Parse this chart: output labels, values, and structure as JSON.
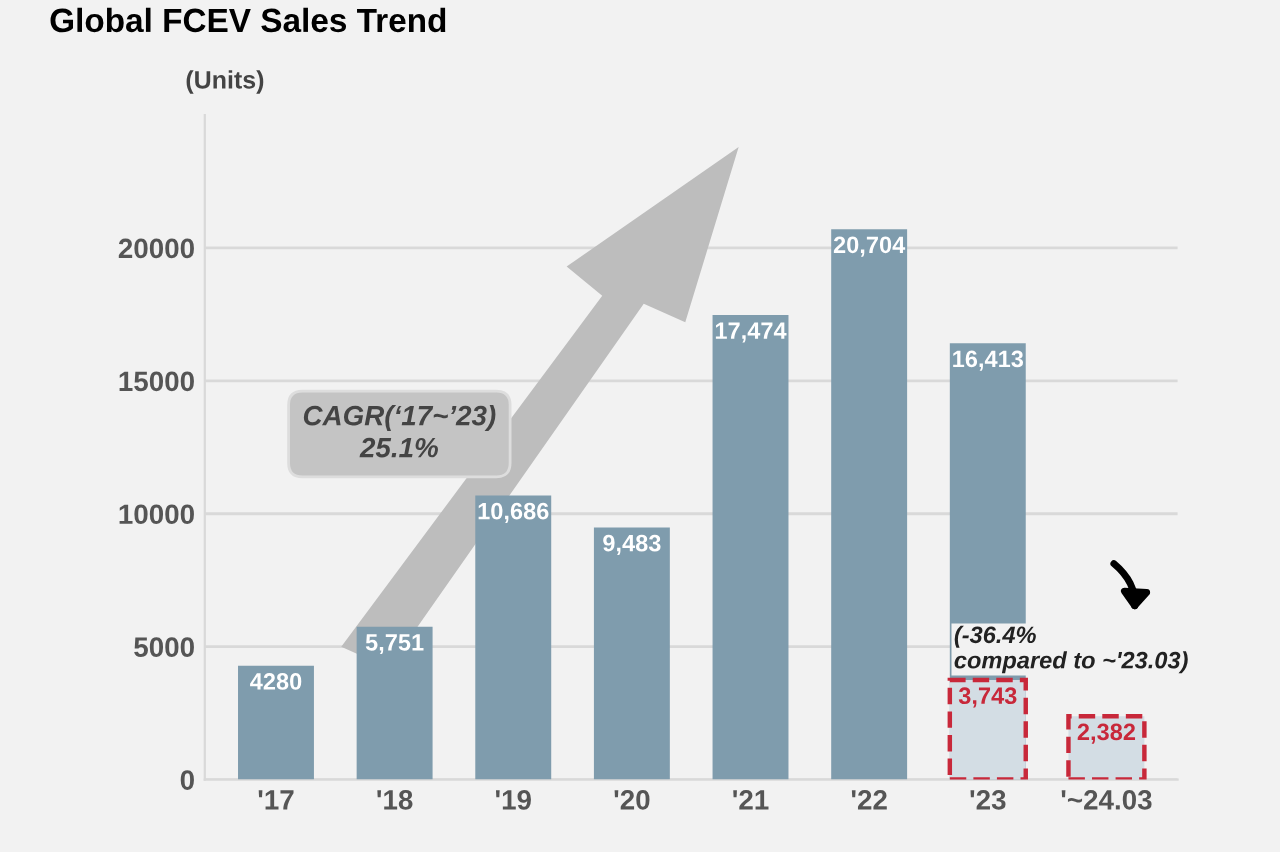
{
  "chart_data": {
    "type": "bar",
    "title": "Global FCEV Sales Trend",
    "ylabel": "(Units)",
    "categories": [
      "'17",
      "'18",
      "'19",
      "'20",
      "'21",
      "'22",
      "'23",
      "'~24.03"
    ],
    "series": [
      {
        "color": "#7f9cad",
        "values": [
          4280,
          5751,
          10686,
          9483,
          17474,
          20704,
          16413,
          null
        ],
        "value_labels": [
          "4280",
          "5,751",
          "10,686",
          "9,483",
          "17,474",
          "20,704",
          "16,413",
          null
        ]
      },
      {
        "color": "#d3dde4",
        "line_style": "dashed",
        "values": [
          null,
          null,
          null,
          null,
          null,
          null,
          3743,
          2382
        ],
        "value_labels": [
          null,
          null,
          null,
          null,
          null,
          null,
          "3,743",
          "2,382"
        ]
      }
    ],
    "ylim": [
      0,
      25000
    ],
    "yticks": [
      0,
      5000,
      10000,
      15000,
      20000
    ],
    "grid": "y",
    "legend": false,
    "annotations": [
      "CAGR(‘17~’23)\n25.1%",
      "(-36.4%\ncompared to ~'23.03)"
    ]
  }
}
